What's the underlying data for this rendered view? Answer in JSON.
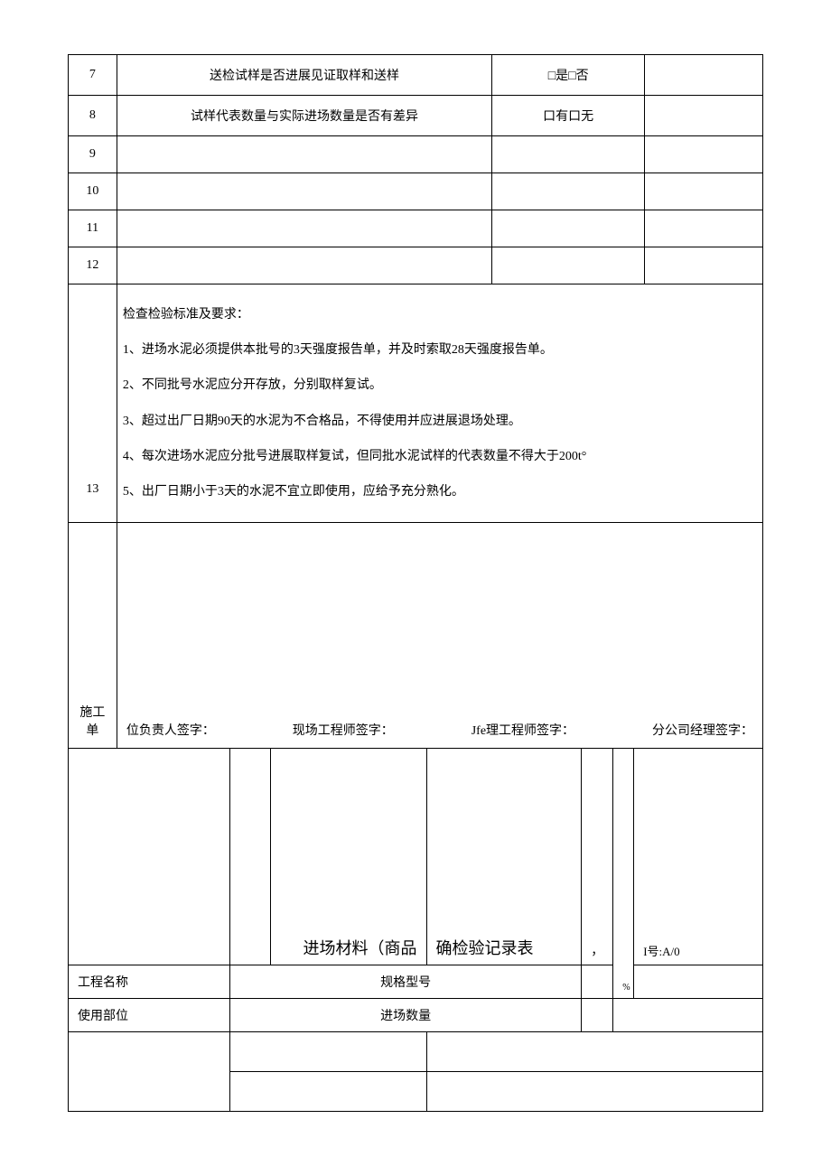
{
  "table1": {
    "rows": [
      {
        "num": "7",
        "desc": "送检试样是否进展见证取样和送样",
        "check": "□是□否"
      },
      {
        "num": "8",
        "desc": "试样代表数量与实际进场数量是否有差异",
        "check": "口有口无"
      },
      {
        "num": "9",
        "desc": "",
        "check": ""
      },
      {
        "num": "10",
        "desc": "",
        "check": ""
      },
      {
        "num": "11",
        "desc": "",
        "check": ""
      },
      {
        "num": "12",
        "desc": "",
        "check": ""
      }
    ],
    "criteria_num": "13",
    "criteria_heading": "检查检验标准及要求：",
    "criteria_items": [
      "1、进场水泥必须提供本批号的3天强度报告单，并及时索取28天强度报告单。",
      "2、不同批号水泥应分开存放，分别取样复试。",
      "3、超过出厂日期90天的水泥为不合格品，不得使用并应进展退场处理。",
      "4、每次进场水泥应分批号进展取样复试，但同批水泥试样的代表数量不得大于200t°",
      "5、出厂日期小于3天的水泥不宜立即使用，应给予充分熟化。"
    ],
    "sign_prefix": "施工单",
    "signatures": [
      "位负责人签字：",
      "现场工程师签字：",
      "Jfe理工程师签字：",
      "分公司经理签字："
    ]
  },
  "table2": {
    "title_left": "进场材料（商品",
    "title_right": "确检验记录表",
    "title_note": "，",
    "version_top": "%",
    "version_bottom": "I号:A/0",
    "labels": {
      "project": "工程名称",
      "spec": "规格型号",
      "part": "使用部位",
      "qty": "进场数量"
    }
  }
}
